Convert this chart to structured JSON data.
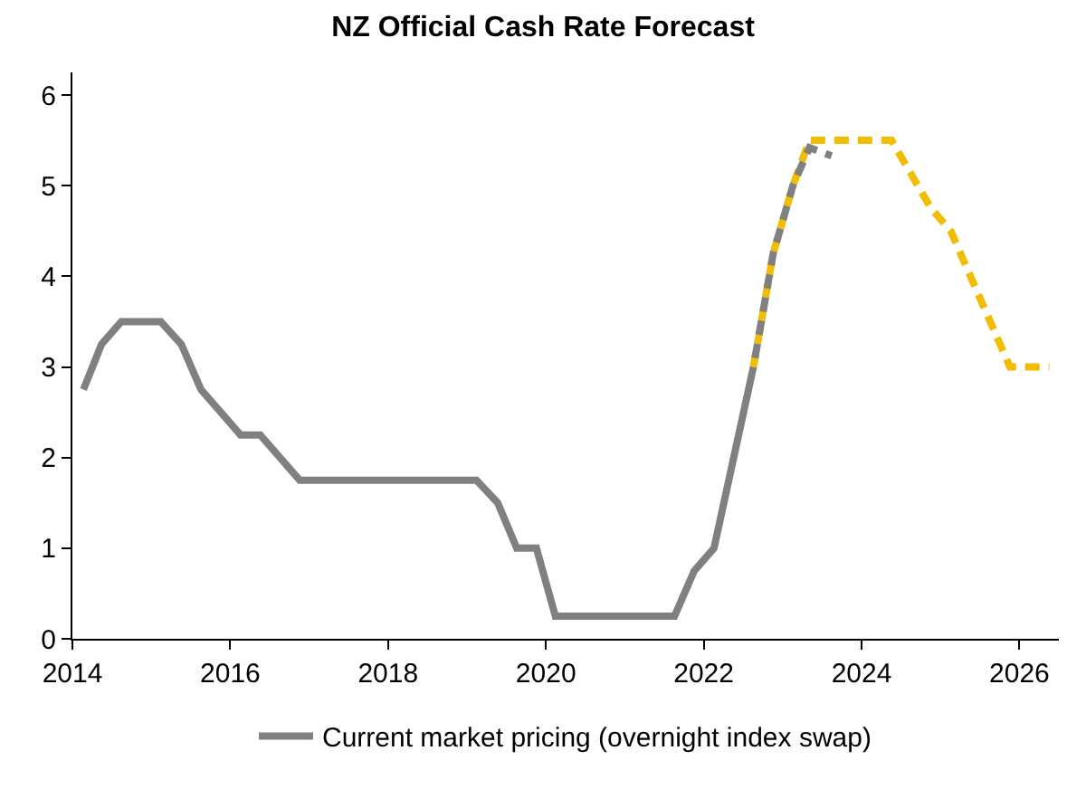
{
  "chart_data": {
    "type": "line",
    "title": "NZ Official Cash Rate Forecast",
    "series": [
      {
        "name": "Current market pricing (overnight index swap)",
        "color": "#808080",
        "line_style": "solid",
        "x": [
          2014.14,
          2014.37,
          2014.62,
          2015.12,
          2015.38,
          2015.63,
          2016.13,
          2016.38,
          2016.88,
          2019.12,
          2019.39,
          2019.63,
          2019.88,
          2020.12,
          2021.63,
          2021.88,
          2022.13,
          2022.63
        ],
        "values": [
          2.75,
          3.25,
          3.5,
          3.5,
          3.25,
          2.75,
          2.25,
          2.25,
          1.75,
          1.75,
          1.5,
          1.0,
          1.0,
          0.25,
          0.25,
          0.75,
          1.0,
          3.0
        ]
      },
      {
        "color": "#f2bd00",
        "line_style": "dashed",
        "x": [
          2022.63,
          2022.88,
          2023.13,
          2023.34,
          2024.38,
          2024.88,
          2025.13,
          2025.38,
          2025.63,
          2025.88,
          2026.38
        ],
        "values": [
          3.0,
          4.25,
          5.0,
          5.5,
          5.5,
          4.75,
          4.5,
          4.0,
          3.5,
          3.0,
          3.0
        ]
      },
      {
        "color": "#808080",
        "line_style": "dashed",
        "x": [
          2022.63,
          2022.88,
          2023.13,
          2023.34,
          2023.62
        ],
        "values": [
          3.0,
          4.25,
          5.0,
          5.42,
          5.33
        ]
      }
    ],
    "xlim": [
      2014,
      2026.5
    ],
    "xticks": [
      2014,
      2016,
      2018,
      2020,
      2022,
      2024,
      2026
    ],
    "ylim": [
      0,
      6.25
    ],
    "yticks": [
      0,
      1,
      2,
      3,
      4,
      5,
      6
    ],
    "legend": "bottom",
    "marker": "none"
  }
}
